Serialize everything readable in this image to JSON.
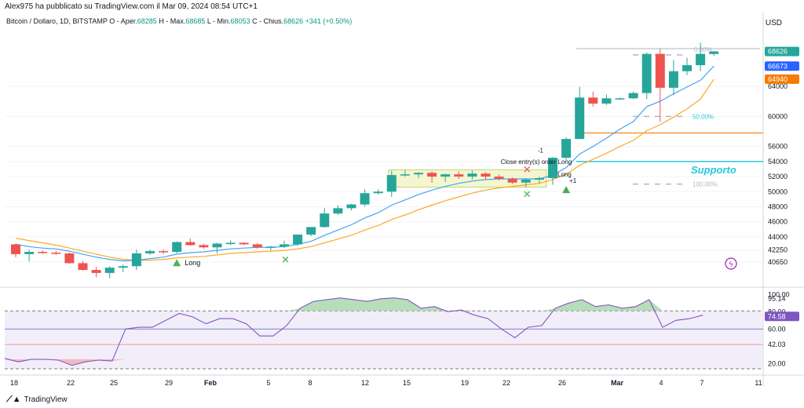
{
  "header": {
    "publisher": "Alex975 ha pubblicato su TradingView.com il Mar 09, 2024 08:54 UTC+1"
  },
  "legend": {
    "symbol": "Bitcoin / Dollaro, 1D, BITSTAMP",
    "open_label": "O - Aper.",
    "open": "68285",
    "high_label": "H - Max.",
    "high": "68685",
    "low_label": "L - Min.",
    "low": "68053",
    "close_label": "C - Chius.",
    "close": "68626",
    "change": "+341 (+0.50%)"
  },
  "currency": "USD",
  "footer": {
    "brand": "TradingView",
    "logo": "tradingview-logo"
  },
  "colors": {
    "up": "#26a69a",
    "down": "#ef5350",
    "ema_fast": "#42a5f5",
    "ema_slow": "#ffa726",
    "support": "#00bcd4",
    "rsi": "#7e57c2",
    "orange_level": "#f57c00"
  },
  "chart_data": [
    {
      "type": "candlestick",
      "title": "Bitcoin / Dollaro, 1D, BITSTAMP",
      "ylabel": "USD",
      "ylim": [
        39500,
        71500
      ],
      "x_tick_labels": [
        "18",
        "22",
        "25",
        "29",
        "Feb",
        "5",
        "8",
        "12",
        "15",
        "19",
        "22",
        "26",
        "Mar",
        "4",
        "7",
        "11"
      ],
      "y_tick_labels": [
        "40650",
        "42250",
        "44000",
        "46000",
        "48000",
        "50000",
        "52000",
        "54000",
        "56000",
        "60000",
        "64000"
      ],
      "price_badges": [
        {
          "label": "68626",
          "value": 68626,
          "color": "#26a69a"
        },
        {
          "label": "66673",
          "value": 66673,
          "color": "#2962ff"
        },
        {
          "label": "64940",
          "value": 64940,
          "color": "#f57c00"
        }
      ],
      "candles": [
        {
          "o": 43000,
          "h": 43100,
          "l": 41300,
          "c": 41700
        },
        {
          "o": 41700,
          "h": 42300,
          "l": 40700,
          "c": 42000
        },
        {
          "o": 42000,
          "h": 42200,
          "l": 41700,
          "c": 41900
        },
        {
          "o": 41900,
          "h": 42150,
          "l": 41600,
          "c": 41800
        },
        {
          "o": 41800,
          "h": 41900,
          "l": 40400,
          "c": 40500
        },
        {
          "o": 40500,
          "h": 40800,
          "l": 39500,
          "c": 39600
        },
        {
          "o": 39600,
          "h": 40000,
          "l": 38600,
          "c": 39200
        },
        {
          "o": 39200,
          "h": 40100,
          "l": 38500,
          "c": 39900
        },
        {
          "o": 39900,
          "h": 40300,
          "l": 39300,
          "c": 40100
        },
        {
          "o": 40100,
          "h": 42300,
          "l": 39600,
          "c": 41800
        },
        {
          "o": 41800,
          "h": 42300,
          "l": 41600,
          "c": 42100
        },
        {
          "o": 42100,
          "h": 42300,
          "l": 41700,
          "c": 42000
        },
        {
          "o": 42000,
          "h": 43400,
          "l": 41800,
          "c": 43300
        },
        {
          "o": 43300,
          "h": 43800,
          "l": 42800,
          "c": 42900
        },
        {
          "o": 42900,
          "h": 43100,
          "l": 42400,
          "c": 42600
        },
        {
          "o": 42600,
          "h": 43200,
          "l": 41800,
          "c": 43100
        },
        {
          "o": 43100,
          "h": 43500,
          "l": 42900,
          "c": 43200
        },
        {
          "o": 43200,
          "h": 43300,
          "l": 42900,
          "c": 43000
        },
        {
          "o": 43000,
          "h": 43200,
          "l": 42400,
          "c": 42600
        },
        {
          "o": 42600,
          "h": 42800,
          "l": 42200,
          "c": 42700
        },
        {
          "o": 42700,
          "h": 43500,
          "l": 42500,
          "c": 43000
        },
        {
          "o": 43000,
          "h": 44000,
          "l": 42800,
          "c": 44300
        },
        {
          "o": 44300,
          "h": 45000,
          "l": 44100,
          "c": 45300
        },
        {
          "o": 45300,
          "h": 47800,
          "l": 45200,
          "c": 47100
        },
        {
          "o": 47100,
          "h": 48200,
          "l": 46900,
          "c": 47800
        },
        {
          "o": 47800,
          "h": 48400,
          "l": 47500,
          "c": 48300
        },
        {
          "o": 48300,
          "h": 50300,
          "l": 48000,
          "c": 49800
        },
        {
          "o": 49800,
          "h": 50300,
          "l": 49600,
          "c": 50000
        },
        {
          "o": 50000,
          "h": 52800,
          "l": 49300,
          "c": 52200
        },
        {
          "o": 52200,
          "h": 52900,
          "l": 52000,
          "c": 52300
        },
        {
          "o": 52300,
          "h": 52600,
          "l": 51800,
          "c": 52500
        },
        {
          "o": 52500,
          "h": 52700,
          "l": 51200,
          "c": 52000
        },
        {
          "o": 52000,
          "h": 52400,
          "l": 51300,
          "c": 52300
        },
        {
          "o": 52300,
          "h": 52700,
          "l": 51700,
          "c": 52000
        },
        {
          "o": 52000,
          "h": 52800,
          "l": 51600,
          "c": 52400
        },
        {
          "o": 52400,
          "h": 52600,
          "l": 51600,
          "c": 52000
        },
        {
          "o": 52000,
          "h": 52300,
          "l": 51500,
          "c": 51700
        },
        {
          "o": 51700,
          "h": 51900,
          "l": 51000,
          "c": 51200
        },
        {
          "o": 51200,
          "h": 51800,
          "l": 50600,
          "c": 51600
        },
        {
          "o": 51600,
          "h": 52000,
          "l": 51100,
          "c": 51800
        },
        {
          "o": 51800,
          "h": 54600,
          "l": 50900,
          "c": 54500
        },
        {
          "o": 54500,
          "h": 57200,
          "l": 54200,
          "c": 57000
        },
        {
          "o": 57000,
          "h": 63900,
          "l": 57000,
          "c": 62500
        },
        {
          "o": 62500,
          "h": 63300,
          "l": 61300,
          "c": 61700
        },
        {
          "o": 61700,
          "h": 62900,
          "l": 61500,
          "c": 62400
        },
        {
          "o": 62400,
          "h": 62500,
          "l": 62200,
          "c": 62400
        },
        {
          "o": 62400,
          "h": 63300,
          "l": 62300,
          "c": 63100
        },
        {
          "o": 63100,
          "h": 68500,
          "l": 62300,
          "c": 68300
        },
        {
          "o": 68300,
          "h": 69000,
          "l": 59300,
          "c": 63800
        },
        {
          "o": 63800,
          "h": 67500,
          "l": 62800,
          "c": 66000
        },
        {
          "o": 66000,
          "h": 67800,
          "l": 65500,
          "c": 66800
        },
        {
          "o": 66800,
          "h": 69800,
          "l": 66000,
          "c": 68300
        },
        {
          "o": 68285,
          "h": 68685,
          "l": 68053,
          "c": 68626
        }
      ],
      "ema_fast": [
        43000,
        42700,
        42500,
        42400,
        42100,
        41700,
        41300,
        41000,
        40800,
        40900,
        41100,
        41300,
        41700,
        41900,
        42000,
        42200,
        42400,
        42500,
        42600,
        42600,
        42700,
        43000,
        43400,
        44200,
        44900,
        45600,
        46500,
        47200,
        48200,
        48900,
        49600,
        50200,
        50700,
        51100,
        51400,
        51600,
        51700,
        51700,
        51700,
        51700,
        52200,
        53200,
        55000,
        56000,
        57100,
        58300,
        59300,
        61300,
        62000,
        63000,
        63900,
        64800,
        66673
      ],
      "ema_slow": [
        43800,
        43500,
        43200,
        42900,
        42500,
        42100,
        41700,
        41300,
        41000,
        40900,
        40900,
        41000,
        41200,
        41300,
        41400,
        41600,
        41800,
        41900,
        42000,
        42100,
        42200,
        42400,
        42700,
        43200,
        43700,
        44200,
        44900,
        45500,
        46300,
        46900,
        47600,
        48200,
        48800,
        49300,
        49800,
        50200,
        50500,
        50700,
        50900,
        51100,
        51600,
        52300,
        53500,
        54300,
        55100,
        56000,
        56800,
        58100,
        58900,
        59900,
        61000,
        62300,
        64940
      ],
      "annotations": {
        "support_label": "Supporto",
        "support_value": 54000,
        "orange_level_value": 57800,
        "fib_top_label": "0.00%",
        "fib_top_value": 69000,
        "fib_mid_label": "50.00%",
        "fib_mid_value": 60000,
        "fib_bottom_label": "100.00%",
        "fib_bottom_value": 51000,
        "long_label_1": "Long",
        "long_label_2": "Long",
        "long_qty": "+1",
        "close_label": "Close entry(s) order Long",
        "close_qty": "-1"
      }
    },
    {
      "type": "line",
      "title": "",
      "ylim": [
        14,
        103
      ],
      "y_tick_labels": [
        "20.00",
        "42.03",
        "60.00",
        "74.58",
        "80.00",
        "95.14",
        "100.00"
      ],
      "badges": [
        {
          "label": "95.14",
          "value": 95.14
        },
        {
          "label": "74.58",
          "value": 74.58
        }
      ],
      "bands": {
        "upper": 80,
        "lower": 20,
        "middle": 40
      },
      "values": [
        26,
        22,
        25,
        25,
        24,
        18,
        22,
        24,
        23,
        60,
        62,
        62,
        70,
        78,
        74,
        66,
        72,
        72,
        66,
        52,
        52,
        64,
        84,
        92,
        94,
        96,
        94,
        92,
        95,
        96,
        94,
        84,
        86,
        80,
        82,
        76,
        72,
        60,
        50,
        62,
        64,
        84,
        90,
        94,
        86,
        88,
        84,
        86,
        94,
        62,
        70,
        72,
        76
      ]
    }
  ]
}
